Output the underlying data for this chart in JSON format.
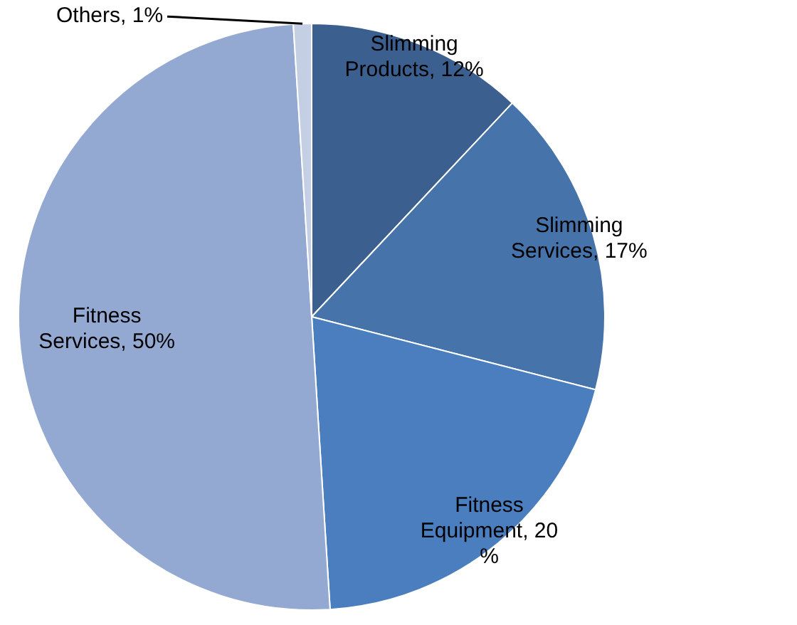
{
  "chart_data": {
    "type": "pie",
    "categories": [
      "Slimming Products",
      "Slimming Services",
      "Fitness Equipment",
      "Fitness Services",
      "Others"
    ],
    "values": [
      12,
      17,
      20,
      50,
      1
    ],
    "colors": [
      "#3b5f8f",
      "#4573aa",
      "#4a7ebe",
      "#94a9d2",
      "#c5cfe4"
    ],
    "value_labels": [
      "12%",
      "17%",
      "20 %",
      "50%",
      "1%"
    ],
    "legend": false
  }
}
